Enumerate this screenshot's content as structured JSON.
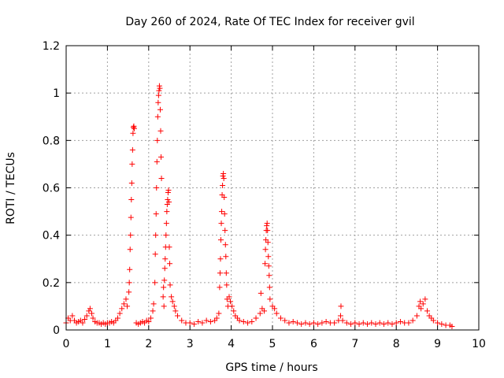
{
  "chart_data": {
    "type": "scatter",
    "title": "Day 260 of 2024, Rate Of TEC Index for receiver gvil",
    "xlabel": "GPS time / hours",
    "ylabel": "ROTI / TECUs",
    "xlim": [
      0,
      10
    ],
    "ylim": [
      0,
      1.2
    ],
    "x_ticks": [
      0,
      1,
      2,
      3,
      4,
      5,
      6,
      7,
      8,
      9,
      10
    ],
    "x_tick_labels": [
      "0",
      "1",
      "2",
      "3",
      "4",
      "5",
      "6",
      "7",
      "8",
      "9",
      "10"
    ],
    "y_ticks": [
      0,
      0.2,
      0.4,
      0.6,
      0.8,
      1.0,
      1.2
    ],
    "y_tick_labels": [
      "0",
      "0.2",
      "0.4",
      "0.6",
      "0.8",
      "1",
      "1.2"
    ],
    "grid": true,
    "marker": "+",
    "series_color": "#ff0000",
    "series": [
      {
        "name": "ROTI",
        "points": [
          [
            0.0,
            0.03
          ],
          [
            0.05,
            0.05
          ],
          [
            0.1,
            0.04
          ],
          [
            0.15,
            0.06
          ],
          [
            0.2,
            0.04
          ],
          [
            0.25,
            0.03
          ],
          [
            0.3,
            0.035
          ],
          [
            0.35,
            0.04
          ],
          [
            0.4,
            0.03
          ],
          [
            0.45,
            0.045
          ],
          [
            0.5,
            0.06
          ],
          [
            0.55,
            0.08
          ],
          [
            0.58,
            0.09
          ],
          [
            0.62,
            0.07
          ],
          [
            0.65,
            0.05
          ],
          [
            0.7,
            0.035
          ],
          [
            0.75,
            0.03
          ],
          [
            0.8,
            0.03
          ],
          [
            0.85,
            0.025
          ],
          [
            0.9,
            0.03
          ],
          [
            0.95,
            0.025
          ],
          [
            1.0,
            0.03
          ],
          [
            1.05,
            0.03
          ],
          [
            1.1,
            0.035
          ],
          [
            1.15,
            0.03
          ],
          [
            1.2,
            0.04
          ],
          [
            1.25,
            0.05
          ],
          [
            1.3,
            0.07
          ],
          [
            1.35,
            0.09
          ],
          [
            1.4,
            0.11
          ],
          [
            1.45,
            0.13
          ],
          [
            1.48,
            0.1
          ],
          [
            1.52,
            0.16
          ],
          [
            1.53,
            0.2
          ],
          [
            1.54,
            0.255
          ],
          [
            1.55,
            0.34
          ],
          [
            1.56,
            0.4
          ],
          [
            1.57,
            0.475
          ],
          [
            1.58,
            0.55
          ],
          [
            1.59,
            0.62
          ],
          [
            1.6,
            0.7
          ],
          [
            1.61,
            0.76
          ],
          [
            1.62,
            0.83
          ],
          [
            1.63,
            0.855
          ],
          [
            1.64,
            0.86
          ],
          [
            1.65,
            0.85
          ],
          [
            1.7,
            0.03
          ],
          [
            1.75,
            0.025
          ],
          [
            1.8,
            0.03
          ],
          [
            1.85,
            0.035
          ],
          [
            1.9,
            0.03
          ],
          [
            1.95,
            0.04
          ],
          [
            2.0,
            0.035
          ],
          [
            2.05,
            0.05
          ],
          [
            2.1,
            0.08
          ],
          [
            2.12,
            0.11
          ],
          [
            2.15,
            0.2
          ],
          [
            2.16,
            0.32
          ],
          [
            2.17,
            0.4
          ],
          [
            2.18,
            0.49
          ],
          [
            2.19,
            0.6
          ],
          [
            2.2,
            0.71
          ],
          [
            2.21,
            0.8
          ],
          [
            2.22,
            0.9
          ],
          [
            2.23,
            0.96
          ],
          [
            2.24,
            0.99
          ],
          [
            2.25,
            1.01
          ],
          [
            2.26,
            1.03
          ],
          [
            2.27,
            1.02
          ],
          [
            2.28,
            0.93
          ],
          [
            2.29,
            0.84
          ],
          [
            2.3,
            0.73
          ],
          [
            2.31,
            0.64
          ],
          [
            2.35,
            0.14
          ],
          [
            2.36,
            0.18
          ],
          [
            2.37,
            0.1
          ],
          [
            2.38,
            0.21
          ],
          [
            2.39,
            0.26
          ],
          [
            2.4,
            0.3
          ],
          [
            2.41,
            0.35
          ],
          [
            2.42,
            0.4
          ],
          [
            2.43,
            0.45
          ],
          [
            2.44,
            0.5
          ],
          [
            2.45,
            0.53
          ],
          [
            2.46,
            0.55
          ],
          [
            2.47,
            0.58
          ],
          [
            2.48,
            0.59
          ],
          [
            2.49,
            0.54
          ],
          [
            2.5,
            0.35
          ],
          [
            2.51,
            0.28
          ],
          [
            2.52,
            0.19
          ],
          [
            2.55,
            0.14
          ],
          [
            2.58,
            0.12
          ],
          [
            2.62,
            0.1
          ],
          [
            2.65,
            0.08
          ],
          [
            2.7,
            0.06
          ],
          [
            2.8,
            0.04
          ],
          [
            2.9,
            0.03
          ],
          [
            3.0,
            0.03
          ],
          [
            3.1,
            0.025
          ],
          [
            3.2,
            0.035
          ],
          [
            3.3,
            0.03
          ],
          [
            3.4,
            0.04
          ],
          [
            3.5,
            0.035
          ],
          [
            3.6,
            0.04
          ],
          [
            3.65,
            0.05
          ],
          [
            3.7,
            0.07
          ],
          [
            3.72,
            0.18
          ],
          [
            3.73,
            0.24
          ],
          [
            3.74,
            0.3
          ],
          [
            3.75,
            0.38
          ],
          [
            3.76,
            0.45
          ],
          [
            3.77,
            0.5
          ],
          [
            3.78,
            0.57
          ],
          [
            3.79,
            0.61
          ],
          [
            3.8,
            0.65
          ],
          [
            3.81,
            0.66
          ],
          [
            3.82,
            0.64
          ],
          [
            3.83,
            0.56
          ],
          [
            3.84,
            0.49
          ],
          [
            3.85,
            0.42
          ],
          [
            3.86,
            0.36
          ],
          [
            3.87,
            0.31
          ],
          [
            3.88,
            0.24
          ],
          [
            3.89,
            0.19
          ],
          [
            3.9,
            0.13
          ],
          [
            3.92,
            0.1
          ],
          [
            3.95,
            0.14
          ],
          [
            3.98,
            0.12
          ],
          [
            4.02,
            0.1
          ],
          [
            4.06,
            0.08
          ],
          [
            4.1,
            0.06
          ],
          [
            4.15,
            0.05
          ],
          [
            4.2,
            0.04
          ],
          [
            4.3,
            0.035
          ],
          [
            4.4,
            0.03
          ],
          [
            4.5,
            0.035
          ],
          [
            4.6,
            0.05
          ],
          [
            4.7,
            0.07
          ],
          [
            4.72,
            0.155
          ],
          [
            4.75,
            0.09
          ],
          [
            4.8,
            0.08
          ],
          [
            4.82,
            0.28
          ],
          [
            4.83,
            0.34
          ],
          [
            4.84,
            0.38
          ],
          [
            4.85,
            0.42
          ],
          [
            4.86,
            0.44
          ],
          [
            4.87,
            0.45
          ],
          [
            4.88,
            0.42
          ],
          [
            4.89,
            0.37
          ],
          [
            4.9,
            0.31
          ],
          [
            4.91,
            0.27
          ],
          [
            4.92,
            0.23
          ],
          [
            4.93,
            0.18
          ],
          [
            4.94,
            0.13
          ],
          [
            5.0,
            0.1
          ],
          [
            5.05,
            0.09
          ],
          [
            5.1,
            0.07
          ],
          [
            5.2,
            0.05
          ],
          [
            5.3,
            0.04
          ],
          [
            5.4,
            0.03
          ],
          [
            5.5,
            0.035
          ],
          [
            5.6,
            0.03
          ],
          [
            5.7,
            0.025
          ],
          [
            5.8,
            0.03
          ],
          [
            5.9,
            0.025
          ],
          [
            6.0,
            0.03
          ],
          [
            6.1,
            0.025
          ],
          [
            6.2,
            0.03
          ],
          [
            6.3,
            0.035
          ],
          [
            6.4,
            0.03
          ],
          [
            6.5,
            0.03
          ],
          [
            6.6,
            0.04
          ],
          [
            6.65,
            0.06
          ],
          [
            6.66,
            0.1
          ],
          [
            6.7,
            0.04
          ],
          [
            6.8,
            0.03
          ],
          [
            6.9,
            0.025
          ],
          [
            7.0,
            0.03
          ],
          [
            7.1,
            0.025
          ],
          [
            7.2,
            0.03
          ],
          [
            7.3,
            0.025
          ],
          [
            7.4,
            0.03
          ],
          [
            7.5,
            0.025
          ],
          [
            7.6,
            0.03
          ],
          [
            7.7,
            0.025
          ],
          [
            7.8,
            0.03
          ],
          [
            7.9,
            0.025
          ],
          [
            8.0,
            0.03
          ],
          [
            8.1,
            0.035
          ],
          [
            8.2,
            0.03
          ],
          [
            8.3,
            0.03
          ],
          [
            8.4,
            0.04
          ],
          [
            8.5,
            0.06
          ],
          [
            8.55,
            0.1
          ],
          [
            8.58,
            0.12
          ],
          [
            8.6,
            0.09
          ],
          [
            8.65,
            0.11
          ],
          [
            8.7,
            0.13
          ],
          [
            8.75,
            0.08
          ],
          [
            8.8,
            0.06
          ],
          [
            8.85,
            0.05
          ],
          [
            8.9,
            0.04
          ],
          [
            9.0,
            0.03
          ],
          [
            9.1,
            0.025
          ],
          [
            9.2,
            0.02
          ],
          [
            9.3,
            0.02
          ],
          [
            9.35,
            0.015
          ]
        ]
      }
    ]
  }
}
